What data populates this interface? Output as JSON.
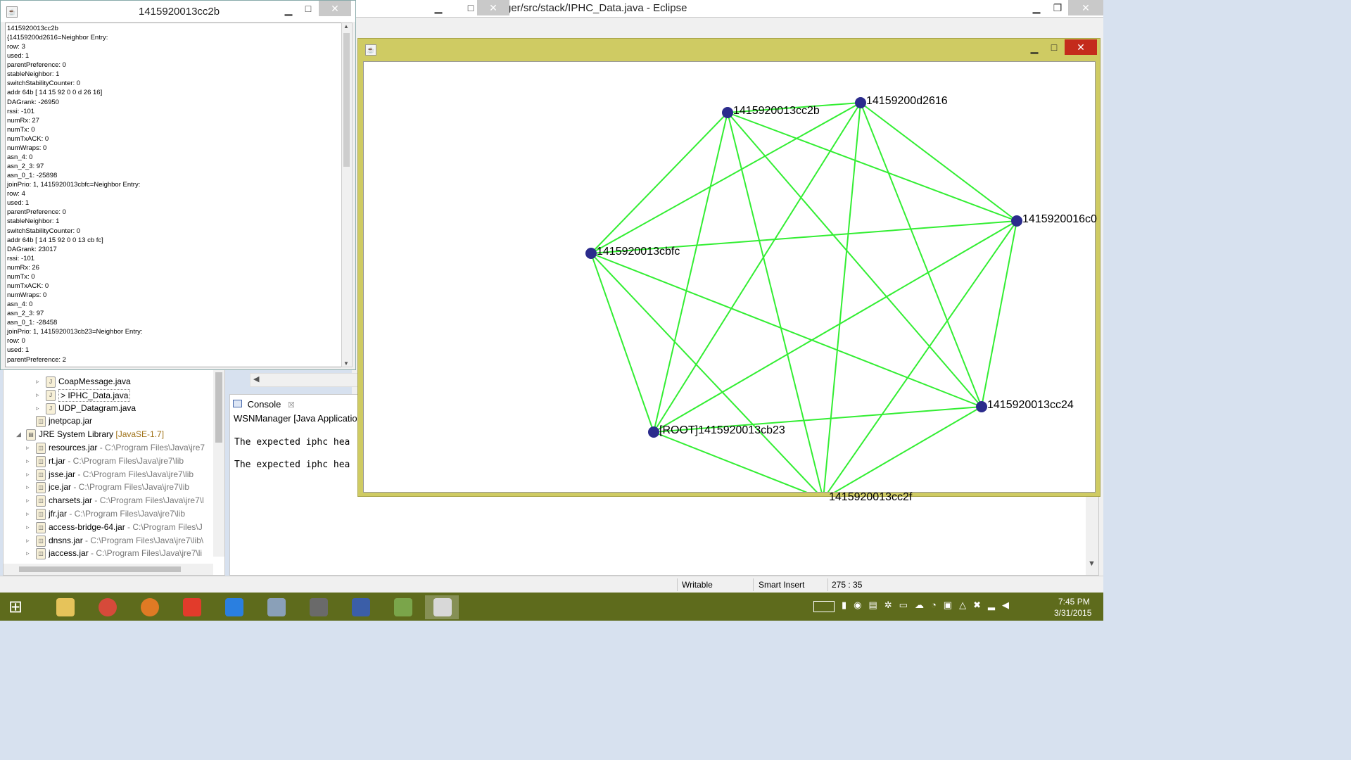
{
  "eclipse": {
    "title": "ger/src/stack/IPHC_Data.java - Eclipse",
    "tree": [
      {
        "label": "CoapMessage.java",
        "indent": 2,
        "arrow": "▹",
        "icon": "java-file-icon"
      },
      {
        "label": "> IPHC_Data.java",
        "indent": 2,
        "arrow": "▹",
        "icon": "java-file-icon",
        "selected": true
      },
      {
        "label": "UDP_Datagram.java",
        "indent": 2,
        "arrow": "▹",
        "icon": "java-file-icon"
      },
      {
        "label": "jnetpcap.jar",
        "indent": 1,
        "arrow": "",
        "icon": "jar-icon"
      },
      {
        "label": "JRE System Library",
        "extra": "[JavaSE-1.7]",
        "indent": 0,
        "arrow": "◢",
        "icon": "library-icon"
      },
      {
        "label": "resources.jar",
        "path": " - C:\\Program Files\\Java\\jre7",
        "indent": 1,
        "arrow": "▹",
        "icon": "jar-icon"
      },
      {
        "label": "rt.jar",
        "path": " - C:\\Program Files\\Java\\jre7\\lib",
        "indent": 1,
        "arrow": "▹",
        "icon": "jar-icon"
      },
      {
        "label": "jsse.jar",
        "path": " - C:\\Program Files\\Java\\jre7\\lib",
        "indent": 1,
        "arrow": "▹",
        "icon": "jar-icon"
      },
      {
        "label": "jce.jar",
        "path": " - C:\\Program Files\\Java\\jre7\\lib",
        "indent": 1,
        "arrow": "▹",
        "icon": "jar-icon"
      },
      {
        "label": "charsets.jar",
        "path": " - C:\\Program Files\\Java\\jre7\\l",
        "indent": 1,
        "arrow": "▹",
        "icon": "jar-icon"
      },
      {
        "label": "jfr.jar",
        "path": " - C:\\Program Files\\Java\\jre7\\lib",
        "indent": 1,
        "arrow": "▹",
        "icon": "jar-icon"
      },
      {
        "label": "access-bridge-64.jar",
        "path": " - C:\\Program Files\\J",
        "indent": 1,
        "arrow": "▹",
        "icon": "jar-icon"
      },
      {
        "label": "dnsns.jar",
        "path": " - C:\\Program Files\\Java\\jre7\\lib\\",
        "indent": 1,
        "arrow": "▹",
        "icon": "jar-icon"
      },
      {
        "label": "jaccess.jar",
        "path": " - C:\\Program Files\\Java\\jre7\\li",
        "indent": 1,
        "arrow": "▹",
        "icon": "jar-icon"
      }
    ],
    "console": {
      "tab_label": "Console",
      "launch": "WSNManager [Java Application]",
      "lines": [
        "The expected iphc hea",
        "The expected iphc hea"
      ]
    },
    "status": {
      "writable": "Writable",
      "insert": "Smart Insert",
      "position": "275 : 35"
    }
  },
  "text_window": {
    "title": "1415920013cc2b",
    "lines": [
      "1415920013cc2b",
      "{14159200d2616=Neighbor Entry:",
      "row: 3",
      "used: 1",
      "parentPreference: 0",
      "stableNeighbor: 1",
      "switchStabilityCounter: 0",
      " addr 64b  [ 14 15 92 0 0 d 26 16]",
      "DAGrank: -26950",
      "rssi: -101",
      "numRx: 27",
      "numTx: 0",
      "numTxACK: 0",
      "numWraps: 0",
      "asn_4: 0",
      "asn_2_3: 97",
      "asn_0_1: -25898",
      "joinPrio: 1, 1415920013cbfc=Neighbor Entry:",
      "row: 4",
      "used: 1",
      "parentPreference: 0",
      "stableNeighbor: 1",
      "switchStabilityCounter: 0",
      " addr 64b  [ 14 15 92 0 0 13 cb fc]",
      "DAGrank: 23017",
      "rssi: -101",
      "numRx: 26",
      "numTx: 0",
      "numTxACK: 0",
      "numWraps: 0",
      "asn_4: 0",
      "asn_2_3: 97",
      "asn_0_1: -28458",
      "joinPrio: 1, 1415920013cb23=Neighbor Entry:",
      "row: 0",
      "used: 1",
      "parentPreference: 2"
    ]
  },
  "graph": {
    "node_color": "#2b2b8c",
    "edge_color": "#33ee33",
    "nodes": [
      {
        "id": "cc2b",
        "label": "1415920013cc2b"
      },
      {
        "id": "d2616",
        "label": "14159200d2616"
      },
      {
        "id": "16c0",
        "label": "1415920016c0"
      },
      {
        "id": "cbfc",
        "label": "1415920013cbfc"
      },
      {
        "id": "cc24",
        "label": "1415920013cc24"
      },
      {
        "id": "cb23",
        "label": "[ROOT]1415920013cb23"
      },
      {
        "id": "cc2f",
        "label": "1415920013cc2f"
      }
    ]
  },
  "taskbar": {
    "time": "7:45 PM",
    "date": "3/31/2015",
    "apps": [
      "windows-start-icon",
      "file-explorer-icon",
      "chrome-icon",
      "firefox-icon",
      "pdf-icon",
      "dropbox-icon",
      "task-manager-icon",
      "settings-app-icon",
      "visio-icon",
      "image-app-icon",
      "java-app-icon"
    ]
  }
}
